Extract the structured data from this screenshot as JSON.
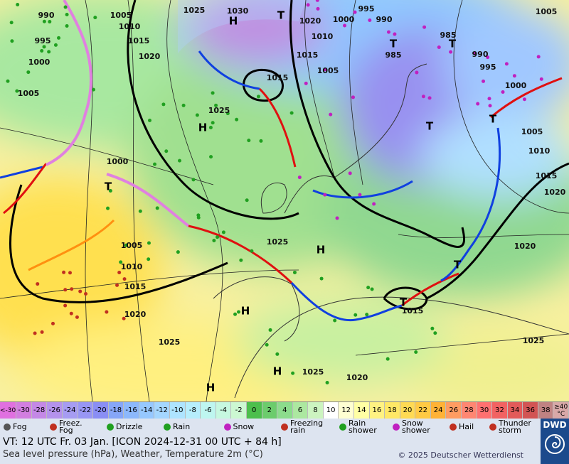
{
  "map": {
    "pressure_labels": [
      "990",
      "995",
      "1000",
      "1005",
      "1005",
      "1010",
      "1015",
      "1020",
      "1025",
      "1030",
      "1025",
      "1020",
      "1000",
      "995",
      "990",
      "1010",
      "1015",
      "1015",
      "1005",
      "985",
      "985",
      "990",
      "995",
      "1000",
      "1005",
      "1005",
      "1010",
      "1015",
      "1020",
      "1020",
      "1025",
      "1000",
      "1005",
      "1010",
      "1015",
      "1020",
      "1025",
      "1025",
      "1015",
      "1025",
      "1020"
    ],
    "highs": [
      "H",
      "H",
      "H",
      "H",
      "H",
      "H"
    ],
    "lows": [
      "T",
      "T",
      "T",
      "T",
      "T",
      "T",
      "T",
      "T"
    ]
  },
  "temperature_scale": {
    "items": [
      {
        "label": "<-30",
        "color": "#e070e0"
      },
      {
        "label": "-30",
        "color": "#d27ee0"
      },
      {
        "label": "-28",
        "color": "#c488e6"
      },
      {
        "label": "-26",
        "color": "#b492ec"
      },
      {
        "label": "-24",
        "color": "#a69cf2"
      },
      {
        "label": "-22",
        "color": "#9896f4"
      },
      {
        "label": "-20",
        "color": "#8a8ef4"
      },
      {
        "label": "-18",
        "color": "#86a6f8"
      },
      {
        "label": "-16",
        "color": "#8cb8fc"
      },
      {
        "label": "-14",
        "color": "#96c8ff"
      },
      {
        "label": "-12",
        "color": "#a4d6ff"
      },
      {
        "label": "-10",
        "color": "#aee4ff"
      },
      {
        "label": "-8",
        "color": "#b6eefc"
      },
      {
        "label": "-6",
        "color": "#bef6f0"
      },
      {
        "label": "-4",
        "color": "#c6f8e0"
      },
      {
        "label": "-2",
        "color": "#ccf8d2"
      },
      {
        "label": "0",
        "color": "#4cbf4c"
      },
      {
        "label": "2",
        "color": "#6ccc6c"
      },
      {
        "label": "4",
        "color": "#8cdc8c"
      },
      {
        "label": "6",
        "color": "#ace8a0"
      },
      {
        "label": "8",
        "color": "#ccf4c0"
      },
      {
        "label": "10",
        "color": "#ffffff"
      },
      {
        "label": "12",
        "color": "#ffffd2"
      },
      {
        "label": "14",
        "color": "#ffffa4"
      },
      {
        "label": "16",
        "color": "#fff282"
      },
      {
        "label": "18",
        "color": "#ffe866"
      },
      {
        "label": "20",
        "color": "#ffda54"
      },
      {
        "label": "22",
        "color": "#ffca44"
      },
      {
        "label": "24",
        "color": "#ffb236"
      },
      {
        "label": "26",
        "color": "#ff9c62"
      },
      {
        "label": "28",
        "color": "#ff8672"
      },
      {
        "label": "30",
        "color": "#ff7070"
      },
      {
        "label": "32",
        "color": "#f26262"
      },
      {
        "label": "34",
        "color": "#e25a5a"
      },
      {
        "label": "36",
        "color": "#d25454"
      },
      {
        "label": "38",
        "color": "#c08282"
      },
      {
        "label": "≥40 °C",
        "color": "#d8a8a8"
      }
    ]
  },
  "weather_legend": [
    "Fog",
    "Freez. Fog",
    "Drizzle",
    "Rain",
    "Snow",
    "Freezing rain",
    "Rain shower",
    "Snow shower",
    "Hail",
    "Thunder storm"
  ],
  "footer": {
    "valid_time": "VT: 12 UTC Fr.  03 Jan. [ICON 2024-12-31  00 UTC + 84 h]",
    "description": "Sea level pressure (hPa), Weather, Temperature 2m (°C)",
    "copyright": "© 2025 Deutscher Wetterdienst",
    "logo": "DWD"
  }
}
